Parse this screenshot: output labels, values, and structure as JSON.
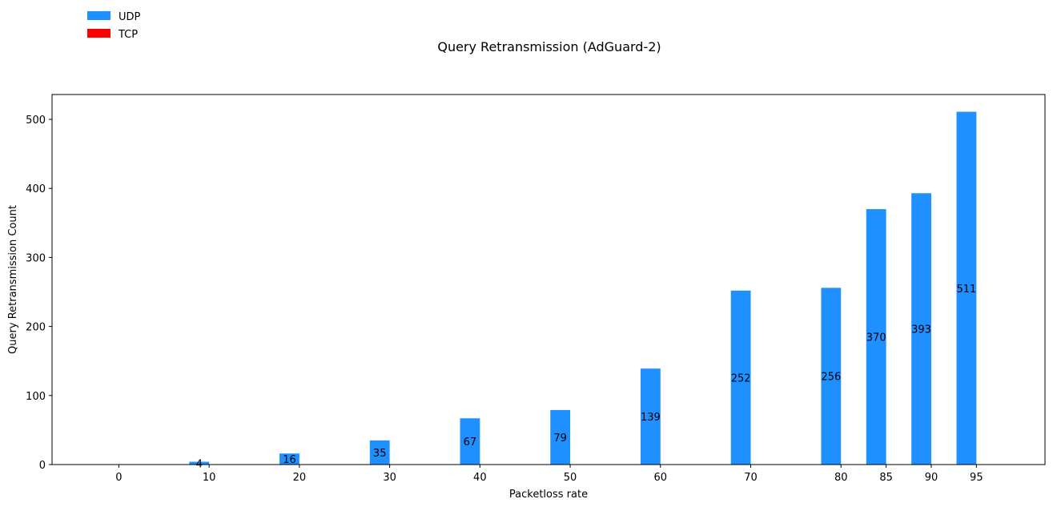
{
  "chart_data": {
    "type": "bar",
    "title": "Query Retransmission (AdGuard-2)",
    "xlabel": "Packetloss rate",
    "ylabel": "Query Retransmission Count",
    "x": [
      0,
      10,
      20,
      30,
      40,
      50,
      60,
      70,
      80,
      85,
      90,
      95
    ],
    "xlim": [
      -7.4,
      102.6
    ],
    "ylim": [
      0,
      536
    ],
    "yticks": [
      0,
      100,
      200,
      300,
      400,
      500
    ],
    "grid": false,
    "legend_position": "top-left",
    "series": [
      {
        "name": "UDP",
        "color": "#1e90ff",
        "values": [
          0,
          4,
          16,
          35,
          67,
          79,
          139,
          252,
          256,
          370,
          393,
          511
        ],
        "data_labels": [
          "",
          "4",
          "16",
          "35",
          "67",
          "79",
          "139",
          "252",
          "256",
          "370",
          "393",
          "511"
        ]
      },
      {
        "name": "TCP",
        "color": "#ff0000",
        "values": [
          0,
          0,
          0,
          0,
          0,
          0,
          0,
          0,
          0,
          0,
          0,
          0
        ]
      }
    ]
  }
}
